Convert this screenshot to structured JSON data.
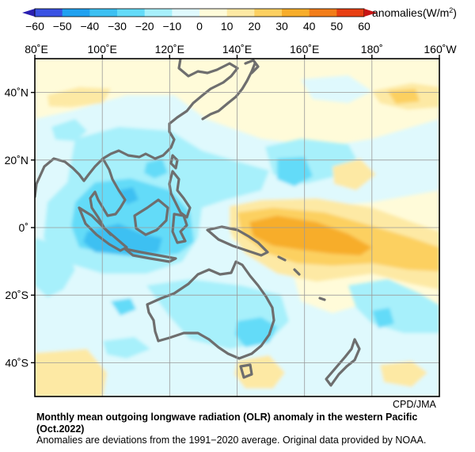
{
  "colorbar": {
    "ticks": [
      "−60",
      "−50",
      "−40",
      "−30",
      "−20",
      "−10",
      "0",
      "10",
      "20",
      "30",
      "40",
      "50",
      "60"
    ],
    "unit_prefix": "anomalies(W/m",
    "unit_exp": "2",
    "unit_suffix": ")",
    "colors": [
      "#3a52e3",
      "#1fa1f0",
      "#3cc0f2",
      "#63dbf8",
      "#a7f0fb",
      "#dff9fd",
      "#fffbd9",
      "#fde9a4",
      "#fcd061",
      "#f7ad2a",
      "#f27d19",
      "#e83f12"
    ]
  },
  "axes": {
    "lon_labels": [
      "80˚E",
      "100˚E",
      "120˚E",
      "140˚E",
      "160˚E",
      "180˚",
      "160˚W"
    ],
    "lat_labels": [
      "40˚N",
      "20˚N",
      "0˚",
      "20˚S",
      "40˚S"
    ]
  },
  "credit": "CPD/JMA",
  "caption": {
    "title": "Monthly mean outgoing longwave radiation (OLR) anomaly in the western Pacific",
    "period": "(Oct.2022)",
    "note": "Anomalies are deviations from the 1991−2020 average. Original data provided by NOAA."
  },
  "palette": {
    "background": "#fffbd9",
    "coastline": "#6e6e6e",
    "grid": "#9a9a9a"
  }
}
